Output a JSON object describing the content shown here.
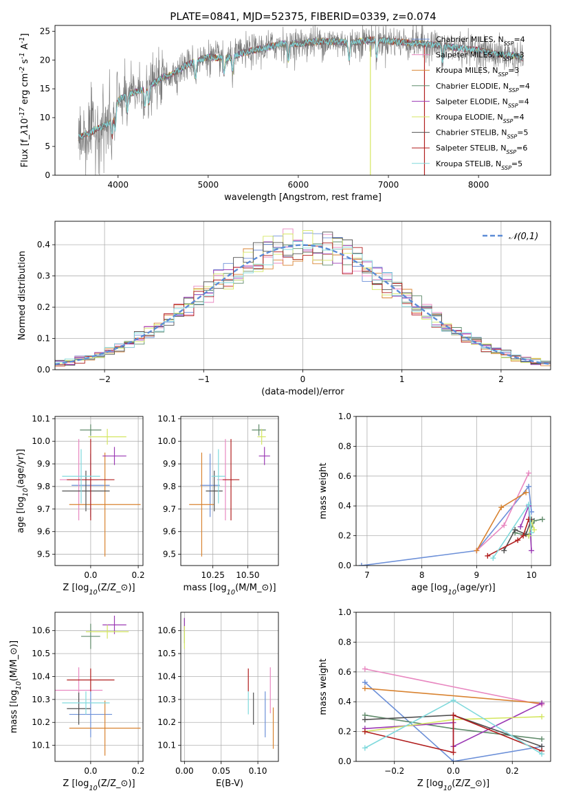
{
  "title": "PLATE=0841, MJD=52375, FIBERID=0339, z=0.074",
  "colors": [
    "#6b8fd8",
    "#e887c0",
    "#d8822f",
    "#5f8a6a",
    "#9b39b4",
    "#d4e661",
    "#505050",
    "#b01c1c",
    "#7fd9dc"
  ],
  "models": [
    {
      "label": "Chabrier MILES, N$_{SSP}$=4",
      "base": "Chabrier MILES, N",
      "sub": "SSP",
      "val": "=4"
    },
    {
      "label": "Salpeter MILES, N$_{SSP}$=3",
      "base": "Salpeter MILES, N",
      "sub": "SSP",
      "val": "=3"
    },
    {
      "label": "Kroupa MILES, N$_{SSP}$=3",
      "base": "Kroupa MILES, N",
      "sub": "SSP",
      "val": "=3"
    },
    {
      "label": "Chabrier ELODIE, N$_{SSP}$=4",
      "base": "Chabrier ELODIE, N",
      "sub": "SSP",
      "val": "=4"
    },
    {
      "label": "Salpeter ELODIE, N$_{SSP}$=4",
      "base": "Salpeter ELODIE, N",
      "sub": "SSP",
      "val": "=4"
    },
    {
      "label": "Kroupa ELODIE, N$_{SSP}$=4",
      "base": "Kroupa ELODIE, N",
      "sub": "SSP",
      "val": "=4"
    },
    {
      "label": "Chabrier STELIB, N$_{SSP}$=5",
      "base": "Chabrier STELIB, N",
      "sub": "SSP",
      "val": "=5"
    },
    {
      "label": "Salpeter STELIB, N$_{SSP}$=6",
      "base": "Salpeter STELIB, N",
      "sub": "SSP",
      "val": "=6"
    },
    {
      "label": "Kroupa STELIB, N$_{SSP}$=5",
      "base": "Kroupa STELIB, N",
      "sub": "SSP",
      "val": "=5"
    }
  ],
  "chart_data": [
    {
      "type": "line",
      "id": "spectrum",
      "xlabel": "wavelength [Angstrom, rest frame]",
      "ylabel": "Flux [f$_\\lambda$10$^{-17}$ erg cm$^{-2}$ s$^{-1}$ A$^{-1}$]",
      "xlim": [
        3300,
        8800
      ],
      "ylim": [
        0,
        26
      ],
      "xticks": [
        4000,
        5000,
        6000,
        7000,
        8000
      ],
      "yticks": [
        0,
        5,
        10,
        15,
        20,
        25
      ],
      "legend_position": "right",
      "continuum": {
        "x": [
          3560,
          3700,
          3800,
          3900,
          3950,
          4000,
          4100,
          4200,
          4300,
          4400,
          4500,
          4600,
          4800,
          5000,
          5200,
          5400,
          5600,
          5800,
          6000,
          6200,
          6400,
          6600,
          6800,
          7000,
          7200,
          7400,
          7600,
          7800,
          8000,
          8200,
          8400,
          8500
        ],
        "y": [
          6.5,
          7.5,
          8.3,
          9.0,
          10.0,
          13.0,
          14.0,
          14.5,
          15.0,
          16.0,
          17.0,
          17.5,
          19.5,
          20.5,
          20.3,
          21.3,
          22.0,
          22.8,
          22.8,
          23.2,
          23.2,
          23.0,
          23.5,
          23.3,
          23.0,
          22.8,
          22.5,
          22.0,
          21.7,
          21.0,
          20.8,
          20.3
        ]
      },
      "artifacts": [
        {
          "x": 6800,
          "color_index": 5
        },
        {
          "x": 7400,
          "color_index": 7
        }
      ]
    },
    {
      "type": "bar",
      "id": "residual_hist",
      "xlabel": "(data-model)/error",
      "ylabel": "Normed distribution",
      "xlim": [
        -2.5,
        2.5
      ],
      "ylim": [
        0,
        0.475
      ],
      "xticks": [
        -2,
        -1,
        0,
        1,
        2
      ],
      "yticks": [
        0.0,
        0.1,
        0.2,
        0.3,
        0.4
      ],
      "bin_width": 0.1,
      "series_kind": "step histograms, one per model",
      "reference": {
        "name": "$\\mathcal{N}(0,1)$",
        "mu": 0,
        "sigma": 1
      }
    },
    {
      "type": "scatter",
      "id": "age_vs_Z",
      "xlabel": "Z [log$_{10}$(Z/Z$_\\odot$)]",
      "ylabel": "age  [log$_{10}$(age/yr)]",
      "xlim": [
        -0.15,
        0.22
      ],
      "ylim": [
        9.45,
        10.11
      ],
      "xticks": [
        0.0,
        0.2
      ],
      "yticks": [
        9.5,
        9.6,
        9.7,
        9.8,
        9.9,
        10.0,
        10.1
      ],
      "points": [
        {
          "m": 0,
          "x": 0.0,
          "y": 9.805,
          "xerr": 0.08,
          "yerr": 0.14
        },
        {
          "m": 1,
          "x": -0.05,
          "y": 9.83,
          "xerr": 0.08,
          "yerr": 0.18
        },
        {
          "m": 2,
          "x": 0.06,
          "y": 9.72,
          "xerr": 0.15,
          "yerr": 0.23
        },
        {
          "m": 3,
          "x": 0.0,
          "y": 10.05,
          "xerr": 0.045,
          "yerr": 0.025
        },
        {
          "m": 4,
          "x": 0.1,
          "y": 9.935,
          "xerr": 0.05,
          "yerr": 0.04
        },
        {
          "m": 5,
          "x": 0.07,
          "y": 10.02,
          "xerr": 0.08,
          "yerr": 0.035
        },
        {
          "m": 6,
          "x": -0.02,
          "y": 9.78,
          "xerr": 0.1,
          "yerr": 0.09
        },
        {
          "m": 7,
          "x": 0.0,
          "y": 9.83,
          "xerr": 0.1,
          "yerr": 0.18
        },
        {
          "m": 8,
          "x": -0.04,
          "y": 9.845,
          "xerr": 0.08,
          "yerr": 0.12
        }
      ]
    },
    {
      "type": "scatter",
      "id": "age_vs_mass",
      "xlabel": "mass [log$_{10}$(M/M$_\\odot$)]",
      "ylabel": "",
      "xlim": [
        10.02,
        10.72
      ],
      "ylim": [
        9.45,
        10.11
      ],
      "xticks": [
        10.25,
        10.5
      ],
      "yticks": [
        9.5,
        9.6,
        9.7,
        9.8,
        9.9,
        10.0,
        10.1
      ],
      "points": [
        {
          "m": 0,
          "x": 10.23,
          "y": 9.805,
          "xerr": 0.07,
          "yerr": 0.14
        },
        {
          "m": 1,
          "x": 10.34,
          "y": 9.83,
          "xerr": 0.06,
          "yerr": 0.18
        },
        {
          "m": 2,
          "x": 10.17,
          "y": 9.72,
          "xerr": 0.09,
          "yerr": 0.23
        },
        {
          "m": 3,
          "x": 10.58,
          "y": 10.05,
          "xerr": 0.05,
          "yerr": 0.025
        },
        {
          "m": 4,
          "x": 10.62,
          "y": 9.935,
          "xerr": 0.04,
          "yerr": 0.04
        },
        {
          "m": 5,
          "x": 10.6,
          "y": 10.02,
          "xerr": 0.03,
          "yerr": 0.035
        },
        {
          "m": 6,
          "x": 10.26,
          "y": 9.78,
          "xerr": 0.06,
          "yerr": 0.09
        },
        {
          "m": 7,
          "x": 10.38,
          "y": 9.83,
          "xerr": 0.06,
          "yerr": 0.18
        },
        {
          "m": 8,
          "x": 10.29,
          "y": 9.845,
          "xerr": 0.05,
          "yerr": 0.12
        }
      ]
    },
    {
      "type": "line",
      "id": "massweight_vs_age",
      "xlabel": "age  [log$_{10}$(age/yr)]",
      "ylabel": "mass weight",
      "xlim": [
        6.8,
        10.35
      ],
      "ylim": [
        0,
        1
      ],
      "xticks": [
        7,
        8,
        9,
        10
      ],
      "yticks": [
        0.0,
        0.2,
        0.4,
        0.6,
        0.8,
        1.0
      ],
      "series": [
        {
          "m": 0,
          "x": [
            6.9,
            9.0,
            9.95,
            10.0
          ],
          "y": [
            0.0,
            0.1,
            0.53,
            0.36
          ]
        },
        {
          "m": 1,
          "x": [
            9.0,
            9.5,
            9.95
          ],
          "y": [
            0.1,
            0.27,
            0.62
          ]
        },
        {
          "m": 2,
          "x": [
            9.0,
            9.45,
            9.9
          ],
          "y": [
            0.1,
            0.39,
            0.49
          ]
        },
        {
          "m": 3,
          "x": [
            9.7,
            9.95,
            10.05,
            10.2
          ],
          "y": [
            0.22,
            0.2,
            0.3,
            0.31
          ]
        },
        {
          "m": 4,
          "x": [
            9.8,
            9.95,
            10.0
          ],
          "y": [
            0.26,
            0.4,
            0.1
          ]
        },
        {
          "m": 5,
          "x": [
            9.95,
            10.0,
            10.05
          ],
          "y": [
            0.2,
            0.3,
            0.24
          ]
        },
        {
          "m": 6,
          "x": [
            9.5,
            9.7,
            9.9,
            10.0
          ],
          "y": [
            0.1,
            0.24,
            0.21,
            0.31
          ]
        },
        {
          "m": 7,
          "x": [
            9.2,
            9.75,
            9.85,
            9.95
          ],
          "y": [
            0.065,
            0.17,
            0.2,
            0.31
          ]
        },
        {
          "m": 8,
          "x": [
            9.3,
            9.95,
            10.0
          ],
          "y": [
            0.05,
            0.41,
            0.22
          ]
        }
      ]
    },
    {
      "type": "scatter",
      "id": "mass_vs_Z",
      "xlabel": "Z [log$_{10}$(Z/Z$_\\odot$)]",
      "ylabel": "mass [log$_{10}$(M/M$_\\odot$)]",
      "xlim": [
        -0.15,
        0.22
      ],
      "ylim": [
        10.03,
        10.68
      ],
      "xticks": [
        0.0,
        0.2
      ],
      "yticks": [
        10.1,
        10.2,
        10.3,
        10.4,
        10.5,
        10.6
      ],
      "points": [
        {
          "m": 0,
          "x": 0.0,
          "y": 10.235,
          "xerr": 0.09,
          "yerr": 0.1
        },
        {
          "m": 1,
          "x": -0.05,
          "y": 10.34,
          "xerr": 0.1,
          "yerr": 0.1
        },
        {
          "m": 2,
          "x": 0.06,
          "y": 10.175,
          "xerr": 0.15,
          "yerr": 0.12
        },
        {
          "m": 3,
          "x": 0.0,
          "y": 10.575,
          "xerr": 0.04,
          "yerr": 0.055
        },
        {
          "m": 4,
          "x": 0.1,
          "y": 10.625,
          "xerr": 0.05,
          "yerr": 0.04
        },
        {
          "m": 5,
          "x": 0.07,
          "y": 10.595,
          "xerr": 0.09,
          "yerr": 0.03
        },
        {
          "m": 6,
          "x": -0.05,
          "y": 10.26,
          "xerr": 0.05,
          "yerr": 0.07
        },
        {
          "m": 7,
          "x": 0.0,
          "y": 10.385,
          "xerr": 0.1,
          "yerr": 0.05
        },
        {
          "m": 8,
          "x": -0.02,
          "y": 10.285,
          "xerr": 0.1,
          "yerr": 0.05
        }
      ]
    },
    {
      "type": "scatter",
      "id": "mass_vs_EBV",
      "xlabel": "E(B-V)",
      "ylabel": "",
      "xlim": [
        -0.005,
        0.128
      ],
      "ylim": [
        10.03,
        10.68
      ],
      "xticks": [
        0.0,
        0.05,
        0.1
      ],
      "yticks": [
        10.1,
        10.2,
        10.3,
        10.4,
        10.5,
        10.6
      ],
      "points": [
        {
          "m": 0,
          "x": 0.11,
          "y": 10.235,
          "xerr": 0,
          "yerr": 0.1
        },
        {
          "m": 1,
          "x": 0.117,
          "y": 10.34,
          "xerr": 0,
          "yerr": 0.1
        },
        {
          "m": 2,
          "x": 0.121,
          "y": 10.175,
          "xerr": 0,
          "yerr": 0.09
        },
        {
          "m": 3,
          "x": 0.0,
          "y": 10.6,
          "xerr": 0,
          "yerr": 0.055
        },
        {
          "m": 4,
          "x": 0.0,
          "y": 10.625,
          "xerr": 0,
          "yerr": 0.03
        },
        {
          "m": 5,
          "x": 0.0,
          "y": 10.57,
          "xerr": 0,
          "yerr": 0.05
        },
        {
          "m": 6,
          "x": 0.094,
          "y": 10.26,
          "xerr": 0,
          "yerr": 0.07
        },
        {
          "m": 7,
          "x": 0.087,
          "y": 10.385,
          "xerr": 0,
          "yerr": 0.05
        },
        {
          "m": 8,
          "x": 0.087,
          "y": 10.285,
          "xerr": 0,
          "yerr": 0.05
        }
      ]
    },
    {
      "type": "line",
      "id": "massweight_vs_Z",
      "xlabel": "Z [log$_{10}$(Z/Z$_\\odot$)]",
      "ylabel": "mass weight",
      "xlim": [
        -0.33,
        0.33
      ],
      "ylim": [
        0,
        1
      ],
      "xticks": [
        -0.2,
        0.0,
        0.2
      ],
      "yticks": [
        0.0,
        0.2,
        0.4,
        0.6,
        0.8,
        1.0
      ],
      "series": [
        {
          "m": 0,
          "x": [
            -0.3,
            0.0,
            0.3
          ],
          "y": [
            0.53,
            0.0,
            0.1
          ]
        },
        {
          "m": 1,
          "x": [
            -0.3,
            0.3
          ],
          "y": [
            0.62,
            0.38
          ]
        },
        {
          "m": 2,
          "x": [
            -0.3,
            0.3
          ],
          "y": [
            0.49,
            0.39
          ]
        },
        {
          "m": 3,
          "x": [
            -0.3,
            0.0,
            0.3
          ],
          "y": [
            0.31,
            0.22,
            0.15
          ]
        },
        {
          "m": 4,
          "x": [
            -0.3,
            0.0,
            0.0,
            0.3
          ],
          "y": [
            0.22,
            0.26,
            0.1,
            0.39
          ]
        },
        {
          "m": 5,
          "x": [
            -0.3,
            0.0,
            0.3
          ],
          "y": [
            0.2,
            0.28,
            0.3
          ]
        },
        {
          "m": 6,
          "x": [
            -0.3,
            0.0,
            0.3
          ],
          "y": [
            0.28,
            0.31,
            0.1
          ]
        },
        {
          "m": 7,
          "x": [
            -0.3,
            0.0,
            0.0,
            0.3
          ],
          "y": [
            0.2,
            0.06,
            0.31,
            0.07
          ]
        },
        {
          "m": 8,
          "x": [
            -0.3,
            0.0,
            0.3
          ],
          "y": [
            0.09,
            0.41,
            0.05
          ]
        }
      ]
    }
  ]
}
